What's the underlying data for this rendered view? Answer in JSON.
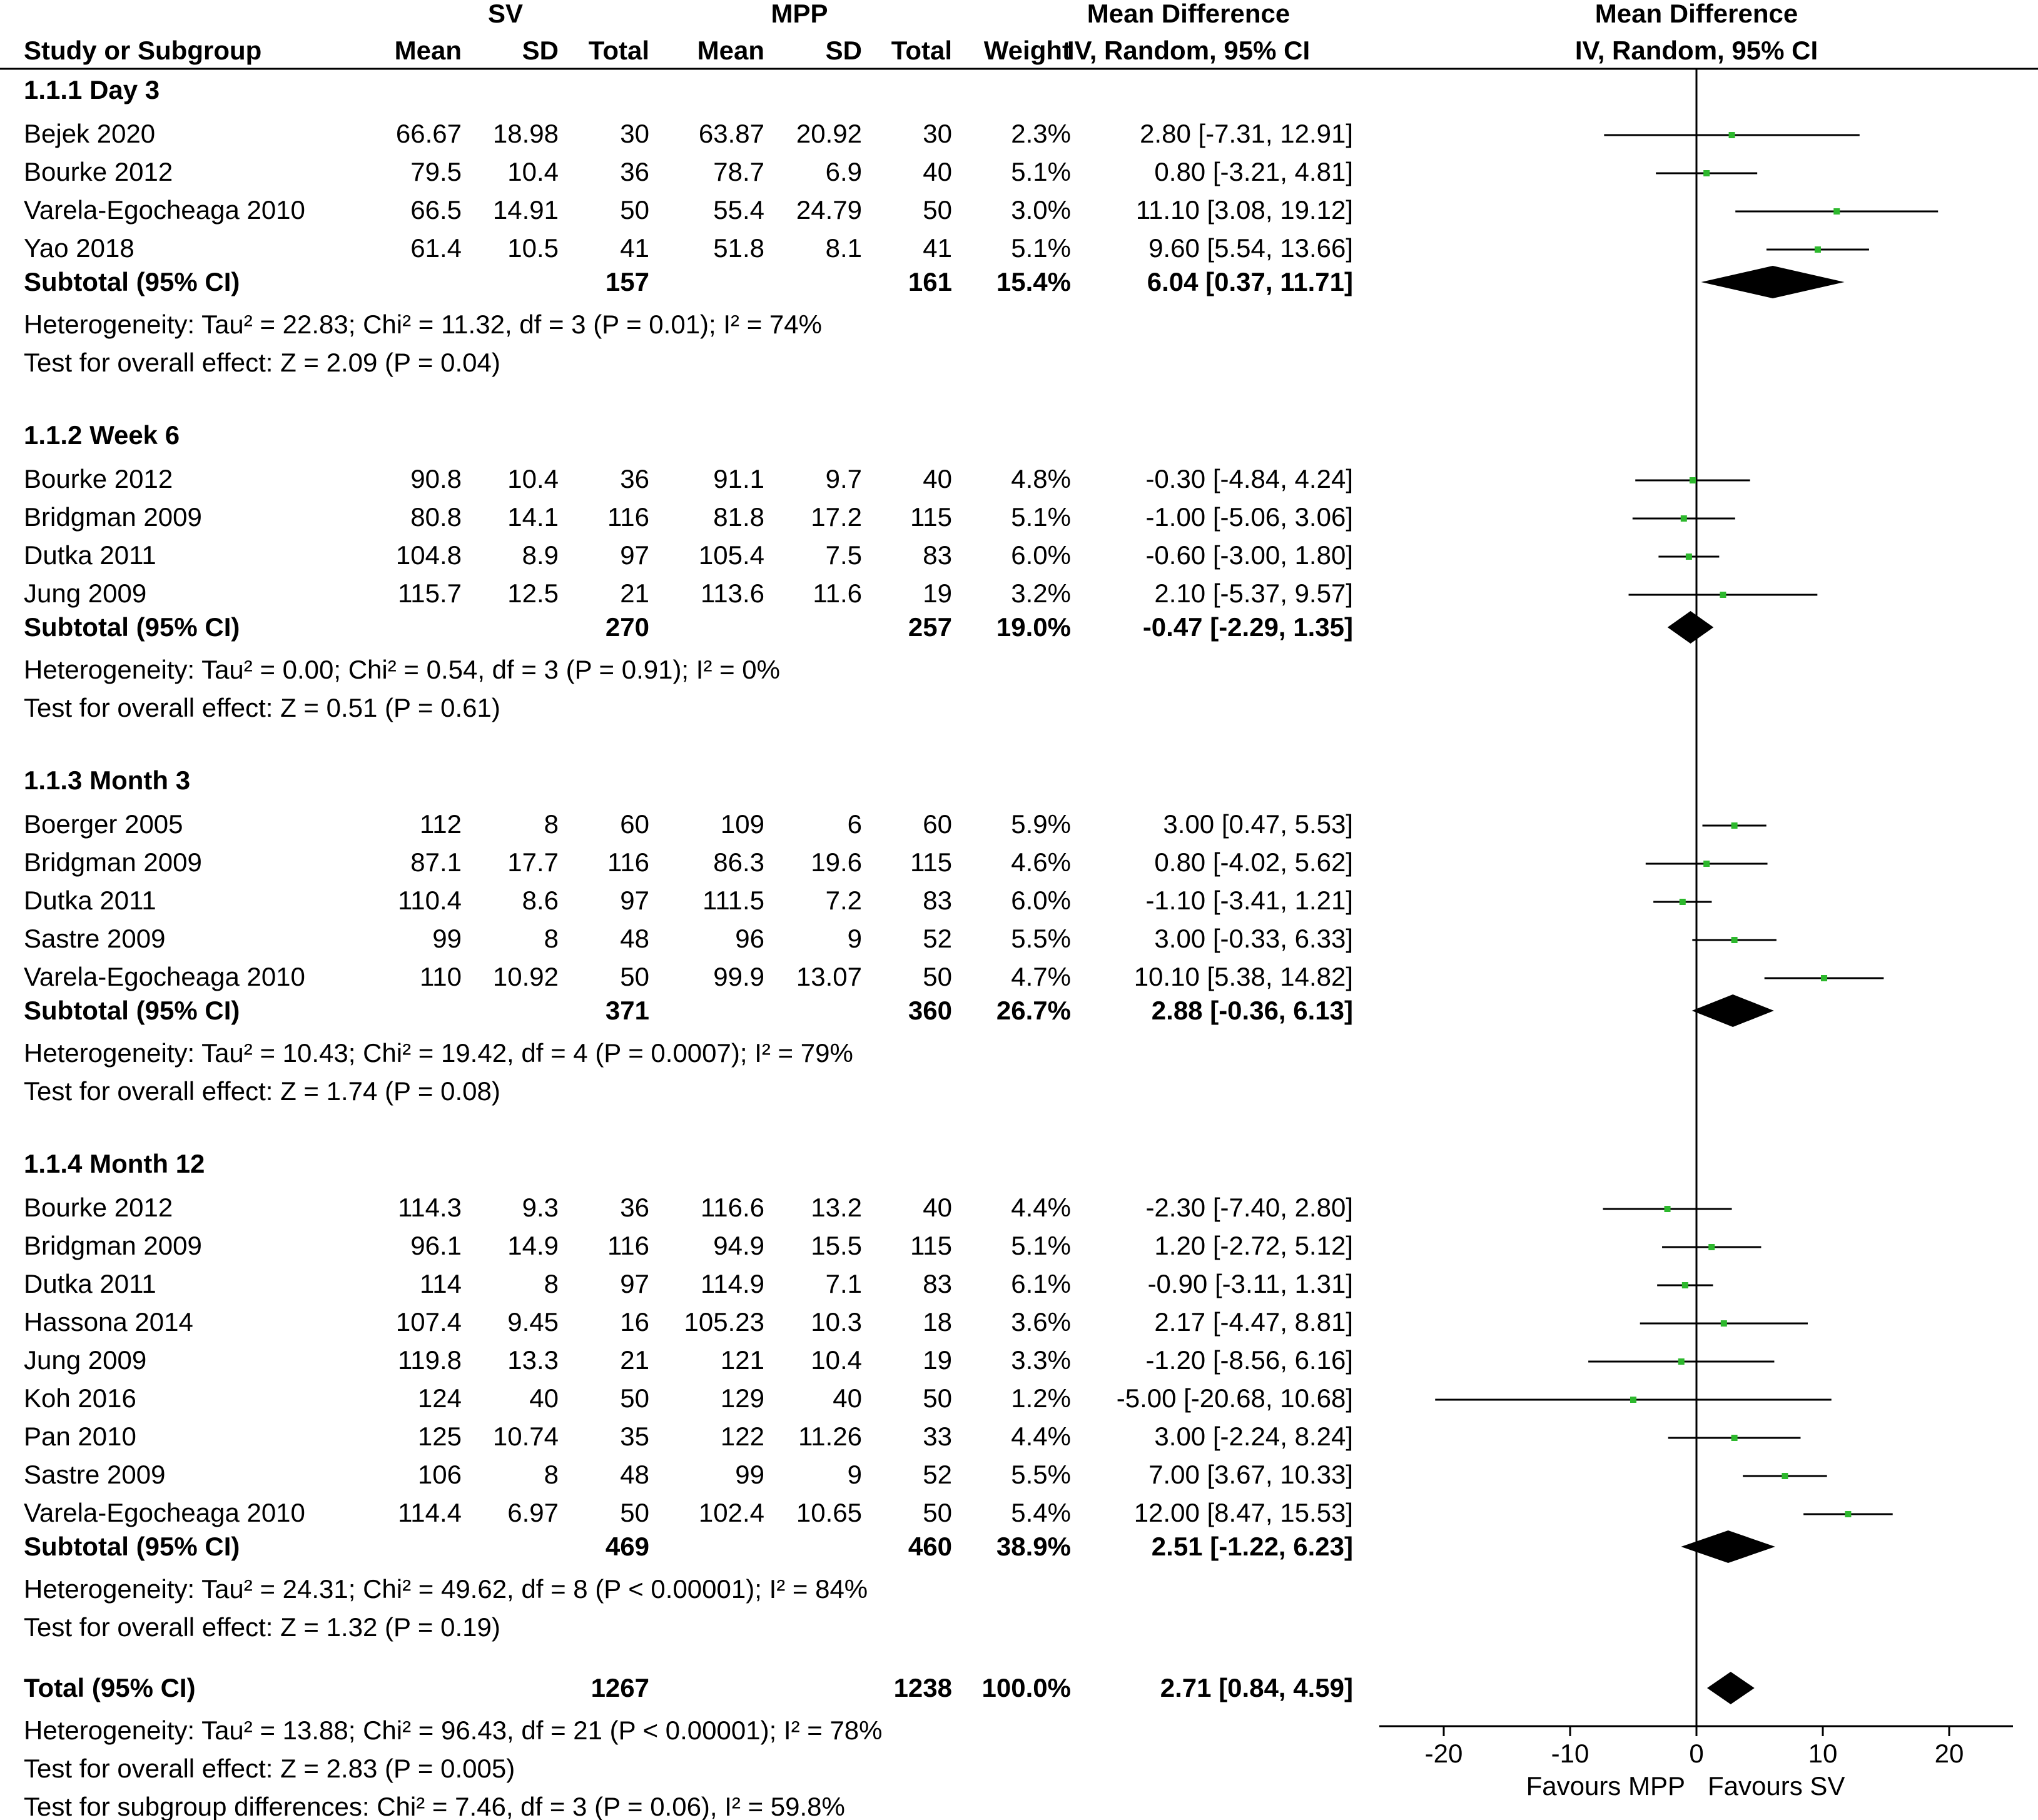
{
  "chart_data": {
    "type": "forest",
    "header": {
      "group1": "SV",
      "group2": "MPP",
      "col_study": "Study or Subgroup",
      "col_mean": "Mean",
      "col_sd": "SD",
      "col_total": "Total",
      "col_weight": "Weight",
      "col_md": "Mean Difference",
      "col_md_method": "IV, Random, 95% CI",
      "plot_title": "Mean Difference",
      "plot_method": "IV, Random, 95% CI"
    },
    "subgroups": [
      {
        "title": "1.1.1 Day 3",
        "studies": [
          {
            "name": "Bejek 2020",
            "sv_mean": "66.67",
            "sv_sd": "18.98",
            "sv_total": "30",
            "mpp_mean": "63.87",
            "mpp_sd": "20.92",
            "mpp_total": "30",
            "weight": "2.3%",
            "ci_text": "2.80 [-7.31, 12.91]",
            "md": 2.8,
            "lo": -7.31,
            "hi": 12.91
          },
          {
            "name": "Bourke 2012",
            "sv_mean": "79.5",
            "sv_sd": "10.4",
            "sv_total": "36",
            "mpp_mean": "78.7",
            "mpp_sd": "6.9",
            "mpp_total": "40",
            "weight": "5.1%",
            "ci_text": "0.80 [-3.21, 4.81]",
            "md": 0.8,
            "lo": -3.21,
            "hi": 4.81
          },
          {
            "name": "Varela-Egocheaga 2010",
            "sv_mean": "66.5",
            "sv_sd": "14.91",
            "sv_total": "50",
            "mpp_mean": "55.4",
            "mpp_sd": "24.79",
            "mpp_total": "50",
            "weight": "3.0%",
            "ci_text": "11.10 [3.08, 19.12]",
            "md": 11.1,
            "lo": 3.08,
            "hi": 19.12
          },
          {
            "name": "Yao 2018",
            "sv_mean": "61.4",
            "sv_sd": "10.5",
            "sv_total": "41",
            "mpp_mean": "51.8",
            "mpp_sd": "8.1",
            "mpp_total": "41",
            "weight": "5.1%",
            "ci_text": "9.60 [5.54, 13.66]",
            "md": 9.6,
            "lo": 5.54,
            "hi": 13.66
          }
        ],
        "subtotal": {
          "label": "Subtotal (95% CI)",
          "sv_total": "157",
          "mpp_total": "161",
          "weight": "15.4%",
          "ci_text": "6.04 [0.37, 11.71]",
          "md": 6.04,
          "lo": 0.37,
          "hi": 11.71
        },
        "heterogeneity": "Heterogeneity: Tau² = 22.83; Chi² = 11.32, df = 3 (P = 0.01); I² = 74%",
        "overall": "Test for overall effect: Z = 2.09 (P = 0.04)"
      },
      {
        "title": "1.1.2 Week 6",
        "studies": [
          {
            "name": "Bourke 2012",
            "sv_mean": "90.8",
            "sv_sd": "10.4",
            "sv_total": "36",
            "mpp_mean": "91.1",
            "mpp_sd": "9.7",
            "mpp_total": "40",
            "weight": "4.8%",
            "ci_text": "-0.30 [-4.84, 4.24]",
            "md": -0.3,
            "lo": -4.84,
            "hi": 4.24
          },
          {
            "name": "Bridgman 2009",
            "sv_mean": "80.8",
            "sv_sd": "14.1",
            "sv_total": "116",
            "mpp_mean": "81.8",
            "mpp_sd": "17.2",
            "mpp_total": "115",
            "weight": "5.1%",
            "ci_text": "-1.00 [-5.06, 3.06]",
            "md": -1.0,
            "lo": -5.06,
            "hi": 3.06
          },
          {
            "name": "Dutka 2011",
            "sv_mean": "104.8",
            "sv_sd": "8.9",
            "sv_total": "97",
            "mpp_mean": "105.4",
            "mpp_sd": "7.5",
            "mpp_total": "83",
            "weight": "6.0%",
            "ci_text": "-0.60 [-3.00, 1.80]",
            "md": -0.6,
            "lo": -3.0,
            "hi": 1.8
          },
          {
            "name": "Jung 2009",
            "sv_mean": "115.7",
            "sv_sd": "12.5",
            "sv_total": "21",
            "mpp_mean": "113.6",
            "mpp_sd": "11.6",
            "mpp_total": "19",
            "weight": "3.2%",
            "ci_text": "2.10 [-5.37, 9.57]",
            "md": 2.1,
            "lo": -5.37,
            "hi": 9.57
          }
        ],
        "subtotal": {
          "label": "Subtotal (95% CI)",
          "sv_total": "270",
          "mpp_total": "257",
          "weight": "19.0%",
          "ci_text": "-0.47 [-2.29, 1.35]",
          "md": -0.47,
          "lo": -2.29,
          "hi": 1.35
        },
        "heterogeneity": "Heterogeneity: Tau² = 0.00; Chi² = 0.54, df = 3 (P = 0.91); I² = 0%",
        "overall": "Test for overall effect: Z = 0.51 (P = 0.61)"
      },
      {
        "title": "1.1.3 Month 3",
        "studies": [
          {
            "name": "Boerger 2005",
            "sv_mean": "112",
            "sv_sd": "8",
            "sv_total": "60",
            "mpp_mean": "109",
            "mpp_sd": "6",
            "mpp_total": "60",
            "weight": "5.9%",
            "ci_text": "3.00 [0.47, 5.53]",
            "md": 3.0,
            "lo": 0.47,
            "hi": 5.53
          },
          {
            "name": "Bridgman 2009",
            "sv_mean": "87.1",
            "sv_sd": "17.7",
            "sv_total": "116",
            "mpp_mean": "86.3",
            "mpp_sd": "19.6",
            "mpp_total": "115",
            "weight": "4.6%",
            "ci_text": "0.80 [-4.02, 5.62]",
            "md": 0.8,
            "lo": -4.02,
            "hi": 5.62
          },
          {
            "name": "Dutka 2011",
            "sv_mean": "110.4",
            "sv_sd": "8.6",
            "sv_total": "97",
            "mpp_mean": "111.5",
            "mpp_sd": "7.2",
            "mpp_total": "83",
            "weight": "6.0%",
            "ci_text": "-1.10 [-3.41, 1.21]",
            "md": -1.1,
            "lo": -3.41,
            "hi": 1.21
          },
          {
            "name": "Sastre 2009",
            "sv_mean": "99",
            "sv_sd": "8",
            "sv_total": "48",
            "mpp_mean": "96",
            "mpp_sd": "9",
            "mpp_total": "52",
            "weight": "5.5%",
            "ci_text": "3.00 [-0.33, 6.33]",
            "md": 3.0,
            "lo": -0.33,
            "hi": 6.33
          },
          {
            "name": "Varela-Egocheaga 2010",
            "sv_mean": "110",
            "sv_sd": "10.92",
            "sv_total": "50",
            "mpp_mean": "99.9",
            "mpp_sd": "13.07",
            "mpp_total": "50",
            "weight": "4.7%",
            "ci_text": "10.10 [5.38, 14.82]",
            "md": 10.1,
            "lo": 5.38,
            "hi": 14.82
          }
        ],
        "subtotal": {
          "label": "Subtotal (95% CI)",
          "sv_total": "371",
          "mpp_total": "360",
          "weight": "26.7%",
          "ci_text": "2.88 [-0.36, 6.13]",
          "md": 2.88,
          "lo": -0.36,
          "hi": 6.13
        },
        "heterogeneity": "Heterogeneity: Tau² = 10.43; Chi² = 19.42, df = 4 (P = 0.0007); I² = 79%",
        "overall": "Test for overall effect: Z = 1.74 (P = 0.08)"
      },
      {
        "title": "1.1.4 Month 12",
        "studies": [
          {
            "name": "Bourke 2012",
            "sv_mean": "114.3",
            "sv_sd": "9.3",
            "sv_total": "36",
            "mpp_mean": "116.6",
            "mpp_sd": "13.2",
            "mpp_total": "40",
            "weight": "4.4%",
            "ci_text": "-2.30 [-7.40, 2.80]",
            "md": -2.3,
            "lo": -7.4,
            "hi": 2.8
          },
          {
            "name": "Bridgman 2009",
            "sv_mean": "96.1",
            "sv_sd": "14.9",
            "sv_total": "116",
            "mpp_mean": "94.9",
            "mpp_sd": "15.5",
            "mpp_total": "115",
            "weight": "5.1%",
            "ci_text": "1.20 [-2.72, 5.12]",
            "md": 1.2,
            "lo": -2.72,
            "hi": 5.12
          },
          {
            "name": "Dutka 2011",
            "sv_mean": "114",
            "sv_sd": "8",
            "sv_total": "97",
            "mpp_mean": "114.9",
            "mpp_sd": "7.1",
            "mpp_total": "83",
            "weight": "6.1%",
            "ci_text": "-0.90 [-3.11, 1.31]",
            "md": -0.9,
            "lo": -3.11,
            "hi": 1.31
          },
          {
            "name": "Hassona 2014",
            "sv_mean": "107.4",
            "sv_sd": "9.45",
            "sv_total": "16",
            "mpp_mean": "105.23",
            "mpp_sd": "10.3",
            "mpp_total": "18",
            "weight": "3.6%",
            "ci_text": "2.17 [-4.47, 8.81]",
            "md": 2.17,
            "lo": -4.47,
            "hi": 8.81
          },
          {
            "name": "Jung 2009",
            "sv_mean": "119.8",
            "sv_sd": "13.3",
            "sv_total": "21",
            "mpp_mean": "121",
            "mpp_sd": "10.4",
            "mpp_total": "19",
            "weight": "3.3%",
            "ci_text": "-1.20 [-8.56, 6.16]",
            "md": -1.2,
            "lo": -8.56,
            "hi": 6.16
          },
          {
            "name": "Koh 2016",
            "sv_mean": "124",
            "sv_sd": "40",
            "sv_total": "50",
            "mpp_mean": "129",
            "mpp_sd": "40",
            "mpp_total": "50",
            "weight": "1.2%",
            "ci_text": "-5.00 [-20.68, 10.68]",
            "md": -5.0,
            "lo": -20.68,
            "hi": 10.68
          },
          {
            "name": "Pan 2010",
            "sv_mean": "125",
            "sv_sd": "10.74",
            "sv_total": "35",
            "mpp_mean": "122",
            "mpp_sd": "11.26",
            "mpp_total": "33",
            "weight": "4.4%",
            "ci_text": "3.00 [-2.24, 8.24]",
            "md": 3.0,
            "lo": -2.24,
            "hi": 8.24
          },
          {
            "name": "Sastre 2009",
            "sv_mean": "106",
            "sv_sd": "8",
            "sv_total": "48",
            "mpp_mean": "99",
            "mpp_sd": "9",
            "mpp_total": "52",
            "weight": "5.5%",
            "ci_text": "7.00 [3.67, 10.33]",
            "md": 7.0,
            "lo": 3.67,
            "hi": 10.33
          },
          {
            "name": "Varela-Egocheaga 2010",
            "sv_mean": "114.4",
            "sv_sd": "6.97",
            "sv_total": "50",
            "mpp_mean": "102.4",
            "mpp_sd": "10.65",
            "mpp_total": "50",
            "weight": "5.4%",
            "ci_text": "12.00 [8.47, 15.53]",
            "md": 12.0,
            "lo": 8.47,
            "hi": 15.53
          }
        ],
        "subtotal": {
          "label": "Subtotal (95% CI)",
          "sv_total": "469",
          "mpp_total": "460",
          "weight": "38.9%",
          "ci_text": "2.51 [-1.22, 6.23]",
          "md": 2.51,
          "lo": -1.22,
          "hi": 6.23
        },
        "heterogeneity": "Heterogeneity: Tau² = 24.31; Chi² = 49.62, df = 8 (P < 0.00001); I² = 84%",
        "overall": "Test for overall effect: Z = 1.32 (P = 0.19)"
      }
    ],
    "total": {
      "label": "Total (95% CI)",
      "sv_total": "1267",
      "mpp_total": "1238",
      "weight": "100.0%",
      "ci_text": "2.71 [0.84, 4.59]",
      "md": 2.71,
      "lo": 0.84,
      "hi": 4.59
    },
    "footer": [
      "Heterogeneity: Tau² = 13.88; Chi² = 96.43, df = 21 (P < 0.00001); I² = 78%",
      "Test for overall effect: Z = 2.83 (P = 0.005)",
      "Test for subgroup differences: Chi² = 7.46, df = 3 (P = 0.06), I² = 59.8%"
    ],
    "axis": {
      "xlim": [
        -25,
        25
      ],
      "ticks": [
        -20,
        -10,
        0,
        10,
        20
      ],
      "tick_labels": [
        "-20",
        "-10",
        "0",
        "10",
        "20"
      ],
      "favours_left": "Favours MPP",
      "favours_right": "Favours SV"
    },
    "colors": {
      "point": "#2db82d",
      "line": "#000000",
      "diamond": "#000000"
    }
  }
}
